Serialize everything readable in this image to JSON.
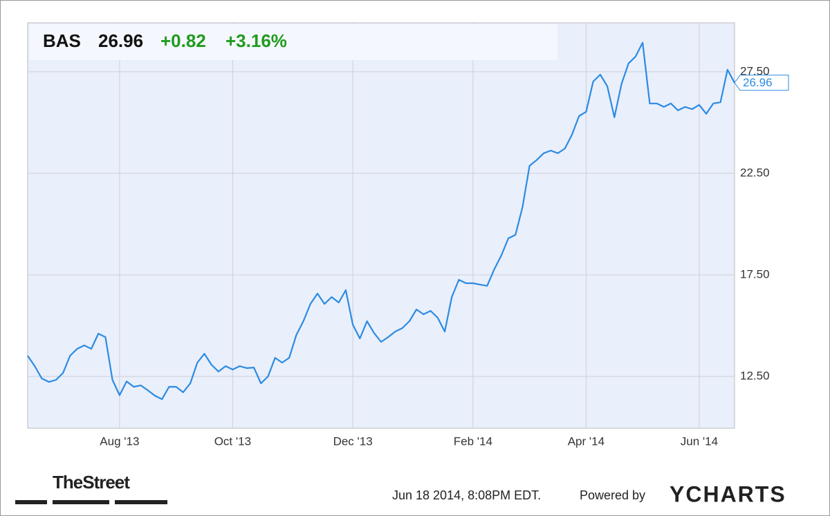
{
  "header": {
    "symbol": "BAS",
    "price": "26.96",
    "change": "+0.82",
    "change_pct": "+3.16%"
  },
  "chart_data": {
    "type": "line",
    "color": "#2b8ae3",
    "categories": [
      null,
      null,
      null,
      null,
      null,
      null,
      null,
      null,
      null,
      null,
      null,
      null,
      null,
      "Aug '13",
      null,
      null,
      null,
      null,
      null,
      null,
      null,
      null,
      null,
      null,
      null,
      null,
      null,
      null,
      null,
      "Oct '13",
      null,
      null,
      null,
      null,
      null,
      null,
      null,
      null,
      null,
      null,
      null,
      null,
      null,
      null,
      null,
      null,
      "Dec '13",
      null,
      null,
      null,
      null,
      null,
      null,
      null,
      null,
      null,
      null,
      null,
      null,
      null,
      null,
      null,
      null,
      "Feb '14",
      null,
      null,
      null,
      null,
      null,
      null,
      null,
      null,
      null,
      null,
      null,
      null,
      null,
      null,
      null,
      "Apr '14",
      null,
      null,
      null,
      null,
      null,
      null,
      null,
      null,
      null,
      null,
      null,
      null,
      null,
      null,
      null,
      "Jun '14",
      null,
      null,
      null,
      null,
      null
    ],
    "values": [
      13.52,
      13.01,
      12.4,
      12.23,
      12.33,
      12.67,
      13.52,
      13.86,
      14.03,
      13.86,
      14.61,
      14.44,
      12.33,
      11.58,
      12.26,
      11.99,
      12.06,
      11.82,
      11.55,
      11.38,
      11.99,
      11.99,
      11.72,
      12.16,
      13.18,
      13.62,
      13.08,
      12.74,
      13.01,
      12.84,
      13.01,
      12.91,
      12.94,
      12.16,
      12.5,
      13.42,
      13.18,
      13.42,
      14.54,
      15.22,
      16.07,
      16.58,
      16.07,
      16.41,
      16.14,
      16.75,
      15.05,
      14.37,
      15.22,
      14.64,
      14.2,
      14.44,
      14.71,
      14.88,
      15.22,
      15.8,
      15.56,
      15.73,
      15.39,
      14.71,
      16.41,
      17.26,
      17.09,
      17.09,
      17.02,
      16.96,
      17.77,
      18.45,
      19.3,
      19.47,
      20.83,
      22.87,
      23.15,
      23.49,
      23.62,
      23.49,
      23.72,
      24.4,
      25.32,
      25.53,
      27.02,
      27.36,
      26.79,
      25.26,
      26.89,
      27.91,
      28.25,
      28.93,
      25.94,
      25.94,
      25.77,
      25.94,
      25.6,
      25.77,
      25.66,
      25.87,
      25.43,
      25.94,
      26.0,
      27.6,
      26.96
    ],
    "value_labels": {
      "100": "26.96"
    },
    "ylim": [
      9.95,
      29.91
    ],
    "yticks": [
      {
        "value": 12.5,
        "label": "12.50"
      },
      {
        "value": 17.5,
        "label": "17.50"
      },
      {
        "value": 22.5,
        "label": "22.50"
      },
      {
        "value": 27.5,
        "label": "27.50"
      }
    ],
    "grid": true
  },
  "footer": {
    "brand": "TheStreet",
    "timestamp": "Jun 18 2014, 8:08PM EDT.",
    "powered": "Powered by",
    "provider": "YCHARTS"
  }
}
